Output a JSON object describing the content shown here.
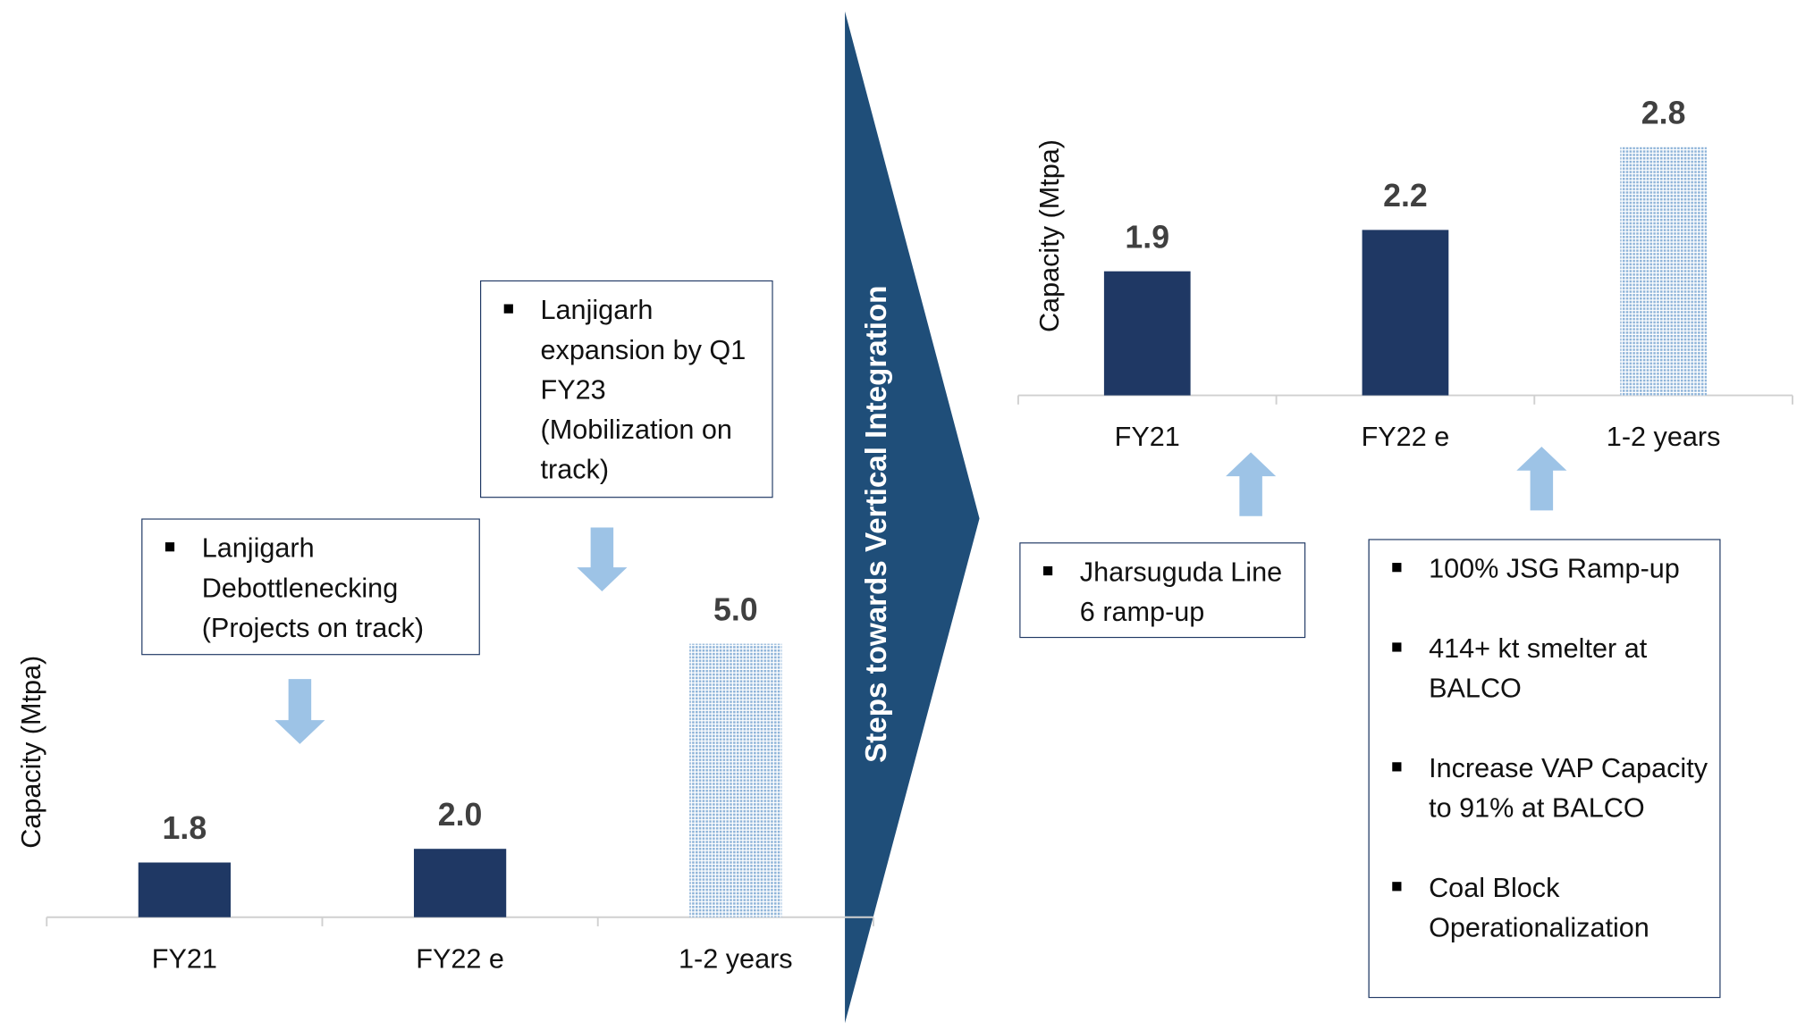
{
  "banner": "Steps towards Vertical Integration",
  "chart_data": [
    {
      "type": "bar",
      "y_label": "Capacity (Mtpa)",
      "categories": [
        "FY21",
        "FY22 e",
        "1-2 years"
      ],
      "values": [
        1.8,
        2.0,
        5.0
      ],
      "value_labels": [
        "1.8",
        "2.0",
        "5.0"
      ],
      "colors": [
        "#1f3864",
        "#1f3864",
        "#8fb4d9"
      ],
      "patterned": [
        false,
        false,
        true
      ],
      "ylim": [
        1,
        6
      ],
      "notes": [
        [
          "Lanjigarh Debottlenecking (Projects on track)"
        ],
        [
          "Lanjigarh expansion by Q1 FY23 (Mobilization on track)"
        ]
      ]
    },
    {
      "type": "bar",
      "y_label": "Capacity (Mtpa)",
      "categories": [
        "FY21",
        "FY22 e",
        "1-2 years"
      ],
      "values": [
        1.9,
        2.2,
        2.8
      ],
      "value_labels": [
        "1.9",
        "2.2",
        "2.8"
      ],
      "colors": [
        "#1f3864",
        "#1f3864",
        "#8fb4d9"
      ],
      "patterned": [
        false,
        false,
        true
      ],
      "ylim": [
        1,
        3
      ],
      "notes": [
        [
          "Jharsuguda Line 6 ramp-up"
        ],
        [
          "100% JSG Ramp-up",
          "414+ kt smelter at BALCO",
          "Increase VAP Capacity to 91% at BALCO",
          "Coal Block Operationalization"
        ]
      ]
    }
  ]
}
